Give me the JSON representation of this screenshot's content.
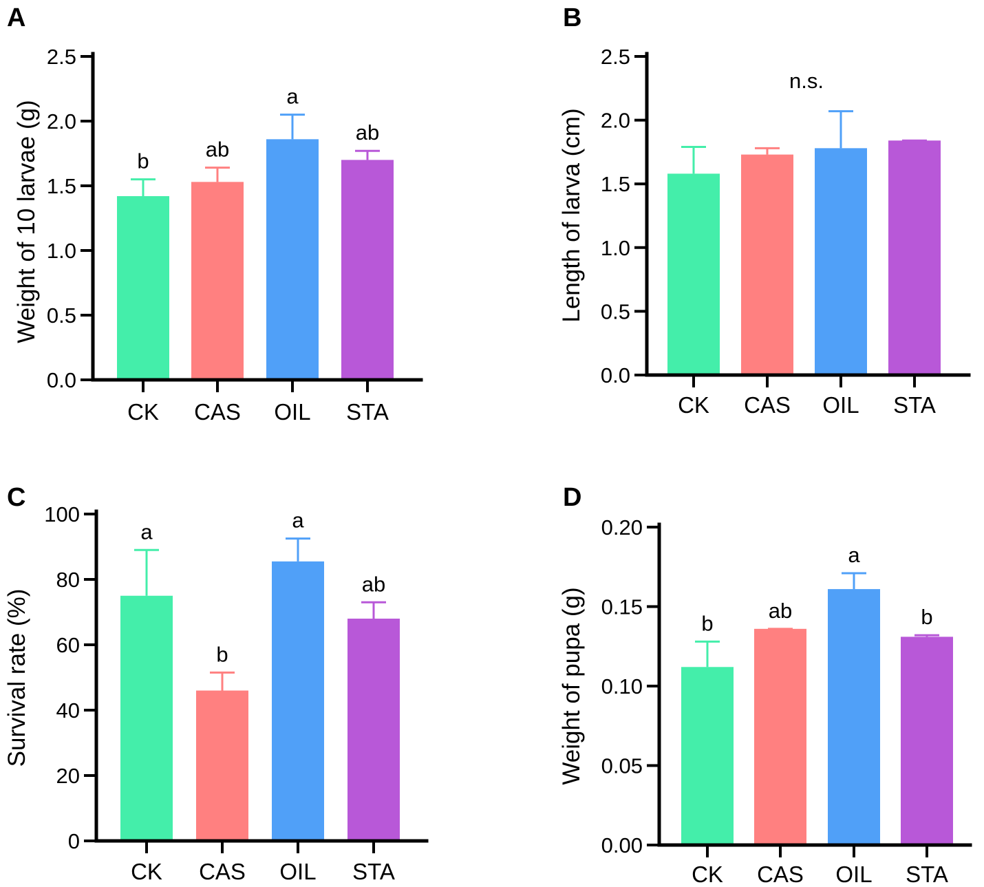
{
  "colors": [
    "#44eeaa",
    "#ff8080",
    "#50a0f8",
    "#b858d8"
  ],
  "chart_data": [
    {
      "panel": "A",
      "type": "bar",
      "categories": [
        "CK",
        "CAS",
        "OIL",
        "STA"
      ],
      "values": [
        1.42,
        1.53,
        1.86,
        1.7
      ],
      "errors": [
        0.13,
        0.11,
        0.19,
        0.07
      ],
      "labels": [
        "b",
        "ab",
        "a",
        "ab"
      ],
      "ylabel": "Weight of 10 larvae (g)",
      "ylim": [
        0,
        2.5
      ],
      "yticks": [
        "0.0",
        "0.5",
        "1.0",
        "1.5",
        "2.0",
        "2.5"
      ],
      "ytick_values": [
        0,
        0.5,
        1.0,
        1.5,
        2.0,
        2.5
      ]
    },
    {
      "panel": "B",
      "type": "bar",
      "categories": [
        "CK",
        "CAS",
        "OIL",
        "STA"
      ],
      "values": [
        1.58,
        1.73,
        1.78,
        1.84
      ],
      "errors": [
        0.21,
        0.05,
        0.29,
        0.0
      ],
      "labels": [],
      "annotation": "n.s.",
      "ylabel": "Length of larva (cm)",
      "ylim": [
        0,
        2.5
      ],
      "yticks": [
        "0.0",
        "0.5",
        "1.0",
        "1.5",
        "2.0",
        "2.5"
      ],
      "ytick_values": [
        0,
        0.5,
        1.0,
        1.5,
        2.0,
        2.5
      ]
    },
    {
      "panel": "C",
      "type": "bar",
      "categories": [
        "CK",
        "CAS",
        "OIL",
        "STA"
      ],
      "values": [
        75,
        46,
        85.5,
        68
      ],
      "errors": [
        14,
        5.5,
        7,
        5
      ],
      "labels": [
        "a",
        "b",
        "a",
        "ab"
      ],
      "ylabel": "Survival rate (%)",
      "ylim": [
        0,
        100
      ],
      "yticks": [
        "0",
        "20",
        "40",
        "60",
        "80",
        "100"
      ],
      "ytick_values": [
        0,
        20,
        40,
        60,
        80,
        100
      ]
    },
    {
      "panel": "D",
      "type": "bar",
      "categories": [
        "CK",
        "CAS",
        "OIL",
        "STA"
      ],
      "values": [
        0.112,
        0.136,
        0.161,
        0.131
      ],
      "errors": [
        0.016,
        0.0,
        0.01,
        0.001
      ],
      "labels": [
        "b",
        "ab",
        "a",
        "b"
      ],
      "ylabel": "Weight of pupa (g)",
      "ylim": [
        0,
        0.2
      ],
      "yticks": [
        "0.00",
        "0.05",
        "0.10",
        "0.15",
        "0.20"
      ],
      "ytick_values": [
        0,
        0.05,
        0.1,
        0.15,
        0.2
      ]
    }
  ]
}
